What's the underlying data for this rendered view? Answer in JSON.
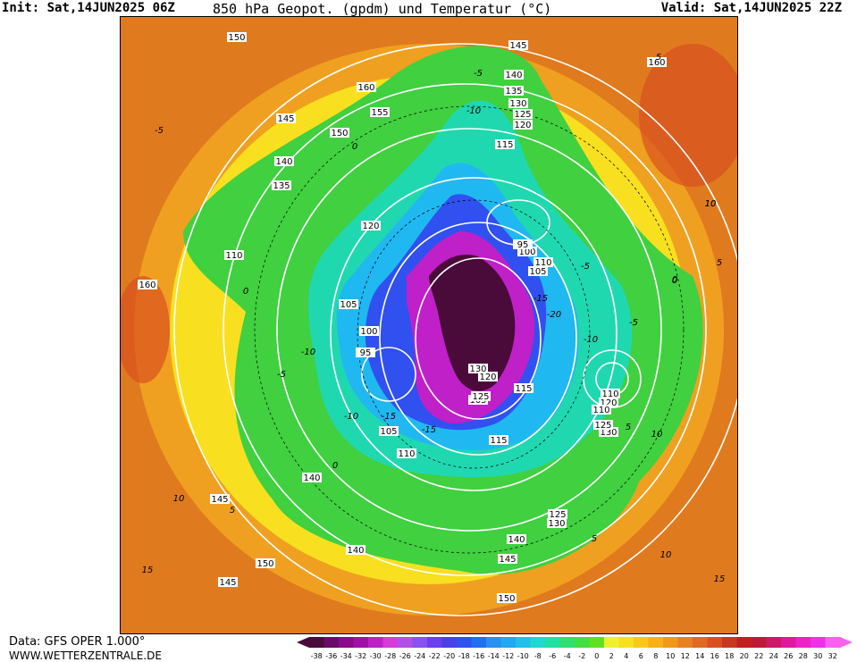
{
  "header": {
    "init": "Init: Sat,14JUN2025 06Z",
    "title": "850 hPa Geopot. (gpdm) und Temperatur (°C)",
    "valid": "Valid: Sat,14JUN2025 22Z"
  },
  "footer": {
    "data_source": "Data: GFS OPER 1.000°",
    "website": "WWW.WETTERZENTRALE.DE"
  },
  "legend": {
    "ticks": [
      "-38",
      "-36",
      "-34",
      "-32",
      "-30",
      "-28",
      "-26",
      "-24",
      "-22",
      "-20",
      "-18",
      "-16",
      "-14",
      "-12",
      "-10",
      "-8",
      "-6",
      "-4",
      "-2",
      "0",
      "2",
      "4",
      "6",
      "8",
      "10",
      "12",
      "14",
      "16",
      "18",
      "20",
      "22",
      "24",
      "26",
      "28",
      "30",
      "32"
    ],
    "colors": [
      "#4a0a3a",
      "#6a0a6a",
      "#8a0a8a",
      "#a010a8",
      "#c020c8",
      "#d83ad8",
      "#b050e8",
      "#8a50f0",
      "#6a40f0",
      "#4a40e8",
      "#3050f0",
      "#2070f0",
      "#2890f0",
      "#20a8f0",
      "#20c0e8",
      "#20d8d0",
      "#20e0a0",
      "#30e070",
      "#40e040",
      "#60e020",
      "#f0f030",
      "#f8e020",
      "#f8c818",
      "#f8b018",
      "#f09818",
      "#e88020",
      "#e06820",
      "#d85020",
      "#c83820",
      "#c02020",
      "#c01838",
      "#d01868",
      "#e018a0",
      "#f020c8",
      "#f030e8",
      "#f860f0"
    ]
  },
  "map_labels": {
    "geopotential": [
      "150",
      "145",
      "140",
      "135",
      "130",
      "125",
      "120",
      "115",
      "110",
      "105",
      "100",
      "95",
      "160",
      "155",
      "150",
      "145",
      "140",
      "135",
      "120",
      "110",
      "105",
      "100",
      "95",
      "140",
      "145",
      "150",
      "145",
      "140",
      "140",
      "145",
      "150",
      "130",
      "125",
      "120",
      "115",
      "105",
      "110",
      "120",
      "110",
      "135",
      "130",
      "125",
      "105",
      "110",
      "115",
      "125",
      "130",
      "160",
      "160"
    ],
    "temperature": [
      "-5",
      "-10",
      "-5",
      "0",
      "5",
      "10",
      "-10",
      "-15",
      "-15",
      "-10",
      "-5",
      "0",
      "5",
      "10",
      "15",
      "0",
      "5",
      "10",
      "15",
      "10",
      "5",
      "0",
      "-5",
      "-20",
      "-15",
      "-10",
      "-5",
      "0",
      "5",
      "10"
    ]
  }
}
